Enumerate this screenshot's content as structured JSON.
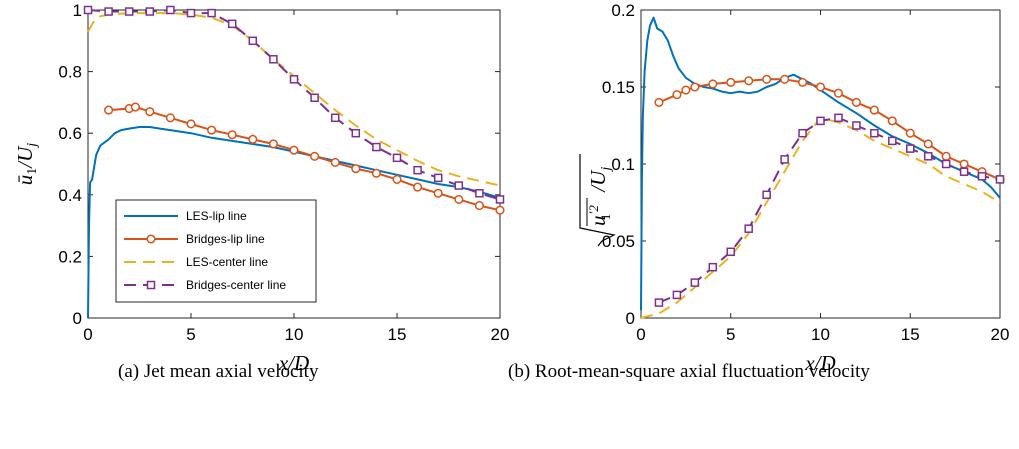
{
  "chart_data": [
    {
      "type": "line",
      "caption": "(a) Jet mean axial velocity",
      "xlabel": "x/D",
      "ylabel": "ū1/Uj",
      "xlim": [
        0,
        20
      ],
      "ylim": [
        0,
        1
      ],
      "xticks": [
        "0",
        "5",
        "10",
        "15",
        "20"
      ],
      "yticks": [
        "0",
        "0.2",
        "0.4",
        "0.6",
        "0.8",
        "1"
      ],
      "legend_position": "lower-left",
      "series": [
        {
          "name": "LES-lip line",
          "color": "#0072BD",
          "style": "solid",
          "marker": "none",
          "x": [
            0.0,
            0.05,
            0.1,
            0.2,
            0.4,
            0.6,
            0.8,
            1.0,
            1.3,
            1.6,
            2.0,
            2.5,
            3.0,
            3.5,
            4.0,
            5.0,
            6.0,
            7.0,
            8.0,
            9.0,
            10.0,
            11.0,
            12.0,
            13.0,
            14.0,
            15.0,
            16.0,
            17.0,
            18.0,
            19.0,
            20.0
          ],
          "y": [
            0.0,
            0.3,
            0.44,
            0.45,
            0.53,
            0.56,
            0.57,
            0.58,
            0.6,
            0.61,
            0.615,
            0.62,
            0.62,
            0.615,
            0.61,
            0.6,
            0.585,
            0.575,
            0.565,
            0.555,
            0.54,
            0.525,
            0.51,
            0.495,
            0.48,
            0.465,
            0.45,
            0.435,
            0.425,
            0.41,
            0.39
          ]
        },
        {
          "name": "Bridges-lip line",
          "color": "#D95319",
          "style": "solid",
          "marker": "circle",
          "x": [
            1.0,
            2.0,
            2.3,
            3.0,
            4.0,
            5.0,
            6.0,
            7.0,
            8.0,
            9.0,
            10.0,
            11.0,
            12.0,
            13.0,
            14.0,
            15.0,
            16.0,
            17.0,
            18.0,
            19.0,
            20.0
          ],
          "y": [
            0.675,
            0.68,
            0.685,
            0.67,
            0.65,
            0.63,
            0.61,
            0.595,
            0.58,
            0.565,
            0.545,
            0.525,
            0.505,
            0.485,
            0.47,
            0.45,
            0.425,
            0.405,
            0.385,
            0.365,
            0.35
          ]
        },
        {
          "name": "LES-center line",
          "color": "#EDB120",
          "style": "dashed",
          "marker": "none",
          "x": [
            0.0,
            0.3,
            0.6,
            1.0,
            2.0,
            3.0,
            4.0,
            5.0,
            6.0,
            7.0,
            8.0,
            9.0,
            10.0,
            11.0,
            12.0,
            13.0,
            14.0,
            15.0,
            16.0,
            17.0,
            18.0,
            19.0,
            20.0
          ],
          "y": [
            0.93,
            0.965,
            0.98,
            0.985,
            0.99,
            0.99,
            0.99,
            0.985,
            0.975,
            0.95,
            0.9,
            0.84,
            0.785,
            0.73,
            0.675,
            0.625,
            0.58,
            0.545,
            0.51,
            0.48,
            0.46,
            0.445,
            0.43
          ]
        },
        {
          "name": "Bridges-center line",
          "color": "#7E2F8E",
          "style": "dashed",
          "marker": "square",
          "x": [
            0.0,
            1.0,
            2.0,
            3.0,
            4.0,
            5.0,
            6.0,
            7.0,
            8.0,
            9.0,
            10.0,
            11.0,
            12.0,
            13.0,
            14.0,
            15.0,
            16.0,
            17.0,
            18.0,
            19.0,
            20.0
          ],
          "y": [
            1.0,
            0.995,
            0.995,
            0.995,
            1.0,
            0.99,
            0.99,
            0.955,
            0.9,
            0.84,
            0.775,
            0.715,
            0.65,
            0.6,
            0.555,
            0.52,
            0.48,
            0.455,
            0.43,
            0.405,
            0.385
          ]
        }
      ]
    },
    {
      "type": "line",
      "caption": "(b) Root-mean-square axial fluctuation velocity",
      "xlabel": "x/D",
      "ylabel": "√(u1′²)/Uj",
      "xlim": [
        0,
        20
      ],
      "ylim": [
        0,
        0.2
      ],
      "xticks": [
        "0",
        "5",
        "10",
        "15",
        "20"
      ],
      "yticks": [
        "0",
        "0.05",
        "0.1",
        "0.15",
        "0.2"
      ],
      "series": [
        {
          "name": "LES-lip line",
          "color": "#0072BD",
          "style": "solid",
          "marker": "none",
          "x": [
            0.0,
            0.05,
            0.1,
            0.2,
            0.35,
            0.5,
            0.7,
            0.9,
            1.2,
            1.5,
            1.8,
            2.1,
            2.5,
            3.0,
            3.5,
            4.0,
            4.5,
            5.0,
            5.5,
            6.0,
            6.5,
            7.0,
            7.5,
            8.0,
            8.5,
            9.0,
            9.5,
            10.0,
            11.0,
            12.0,
            13.0,
            14.0,
            15.0,
            16.0,
            17.0,
            18.0,
            19.0,
            19.5,
            20.0
          ],
          "y": [
            0.005,
            0.09,
            0.13,
            0.16,
            0.18,
            0.19,
            0.195,
            0.188,
            0.186,
            0.18,
            0.17,
            0.162,
            0.156,
            0.152,
            0.15,
            0.149,
            0.147,
            0.146,
            0.147,
            0.146,
            0.147,
            0.15,
            0.152,
            0.156,
            0.158,
            0.155,
            0.152,
            0.148,
            0.14,
            0.133,
            0.125,
            0.118,
            0.113,
            0.107,
            0.1,
            0.095,
            0.09,
            0.085,
            0.078
          ]
        },
        {
          "name": "Bridges-lip line",
          "color": "#D95319",
          "style": "solid",
          "marker": "circle",
          "x": [
            1.0,
            2.0,
            2.5,
            3.0,
            4.0,
            5.0,
            6.0,
            7.0,
            8.0,
            9.0,
            10.0,
            11.0,
            12.0,
            13.0,
            14.0,
            15.0,
            16.0,
            17.0,
            18.0,
            19.0,
            20.0
          ],
          "y": [
            0.14,
            0.145,
            0.148,
            0.15,
            0.152,
            0.153,
            0.154,
            0.155,
            0.155,
            0.153,
            0.15,
            0.146,
            0.14,
            0.135,
            0.128,
            0.12,
            0.113,
            0.105,
            0.1,
            0.095,
            0.09
          ]
        },
        {
          "name": "LES-center line",
          "color": "#EDB120",
          "style": "dashed",
          "marker": "none",
          "x": [
            0.0,
            1.0,
            2.0,
            3.0,
            4.0,
            5.0,
            6.0,
            7.0,
            8.0,
            9.0,
            10.0,
            11.0,
            12.0,
            13.0,
            14.0,
            15.0,
            16.0,
            17.0,
            18.0,
            19.0,
            20.0
          ],
          "y": [
            0.0,
            0.003,
            0.01,
            0.02,
            0.03,
            0.04,
            0.055,
            0.075,
            0.095,
            0.115,
            0.13,
            0.127,
            0.122,
            0.115,
            0.11,
            0.105,
            0.1,
            0.092,
            0.087,
            0.082,
            0.075
          ]
        },
        {
          "name": "Bridges-center line",
          "color": "#7E2F8E",
          "style": "dashed",
          "marker": "square",
          "x": [
            1.0,
            2.0,
            3.0,
            4.0,
            5.0,
            6.0,
            7.0,
            8.0,
            9.0,
            10.0,
            11.0,
            12.0,
            13.0,
            14.0,
            15.0,
            16.0,
            17.0,
            18.0,
            19.0,
            20.0
          ],
          "y": [
            0.01,
            0.015,
            0.023,
            0.033,
            0.043,
            0.058,
            0.08,
            0.103,
            0.12,
            0.128,
            0.13,
            0.125,
            0.12,
            0.115,
            0.11,
            0.105,
            0.1,
            0.095,
            0.092,
            0.09
          ]
        }
      ]
    }
  ]
}
